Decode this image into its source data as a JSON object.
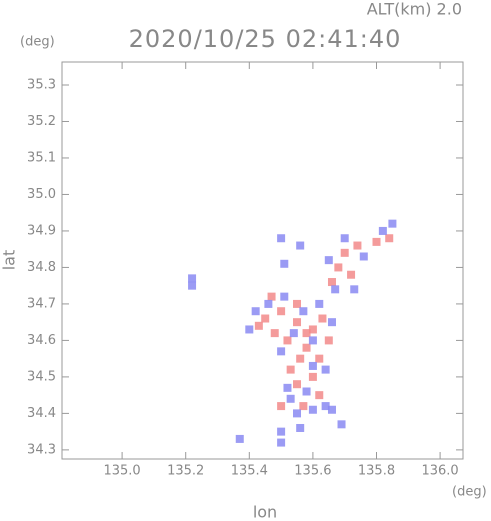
{
  "chart_data": {
    "type": "scatter",
    "title": "2020/10/25 02:41:40",
    "subtitle": "ALT(km) 2.0",
    "x_label": "lon",
    "y_label": "lat",
    "x_unit": "(deg)",
    "y_unit": "(deg)",
    "xlim": [
      134.811,
      136.072
    ],
    "ylim": [
      34.275,
      35.363
    ],
    "xticks": [
      {
        "value": 135,
        "label": "135.0"
      },
      135.2,
      135.4,
      135.6,
      135.8,
      {
        "value": 136,
        "label": "136.0"
      }
    ],
    "yticks": [
      34.3,
      34.4,
      34.5,
      34.6,
      34.7,
      34.8,
      34.9,
      {
        "value": 35,
        "label": "35.0"
      },
      35.1,
      35.2,
      35.3
    ],
    "series": [
      {
        "color": "#f28a8a",
        "x": [
          135.45,
          135.5,
          135.55,
          135.6,
          135.52,
          135.58,
          135.63,
          135.48,
          135.56,
          135.6,
          135.55,
          135.62,
          135.57,
          135.53,
          135.65,
          135.68,
          135.7,
          135.72,
          135.74,
          135.8,
          135.84,
          135.66,
          135.55,
          135.47,
          135.58,
          135.5,
          135.43,
          135.62
        ],
        "y": [
          34.66,
          34.68,
          34.65,
          34.63,
          34.6,
          34.58,
          34.66,
          34.62,
          34.55,
          34.5,
          34.48,
          34.45,
          34.42,
          34.52,
          34.6,
          34.8,
          34.84,
          34.78,
          34.86,
          34.87,
          34.88,
          34.76,
          34.7,
          34.72,
          34.62,
          34.42,
          34.64,
          34.55
        ]
      },
      {
        "color": "#8a8af2",
        "x": [
          135.42,
          135.46,
          135.51,
          135.57,
          135.62,
          135.66,
          135.4,
          135.5,
          135.54,
          135.6,
          135.64,
          135.52,
          135.58,
          135.64,
          135.55,
          135.6,
          135.53,
          135.66,
          135.6,
          135.65,
          135.7,
          135.76,
          135.82,
          135.85,
          135.67,
          135.73,
          135.51,
          135.56,
          135.5,
          135.22,
          135.22,
          135.37,
          135.5,
          135.56,
          135.5,
          135.69
        ],
        "y": [
          34.68,
          34.7,
          34.72,
          34.68,
          34.7,
          34.65,
          34.63,
          34.57,
          34.62,
          34.6,
          34.52,
          34.47,
          34.46,
          34.42,
          34.4,
          34.41,
          34.44,
          34.41,
          34.53,
          34.82,
          34.88,
          34.83,
          34.9,
          34.92,
          34.74,
          34.74,
          34.81,
          34.86,
          34.88,
          34.77,
          34.75,
          34.33,
          34.35,
          34.36,
          34.32,
          34.37
        ]
      }
    ]
  }
}
